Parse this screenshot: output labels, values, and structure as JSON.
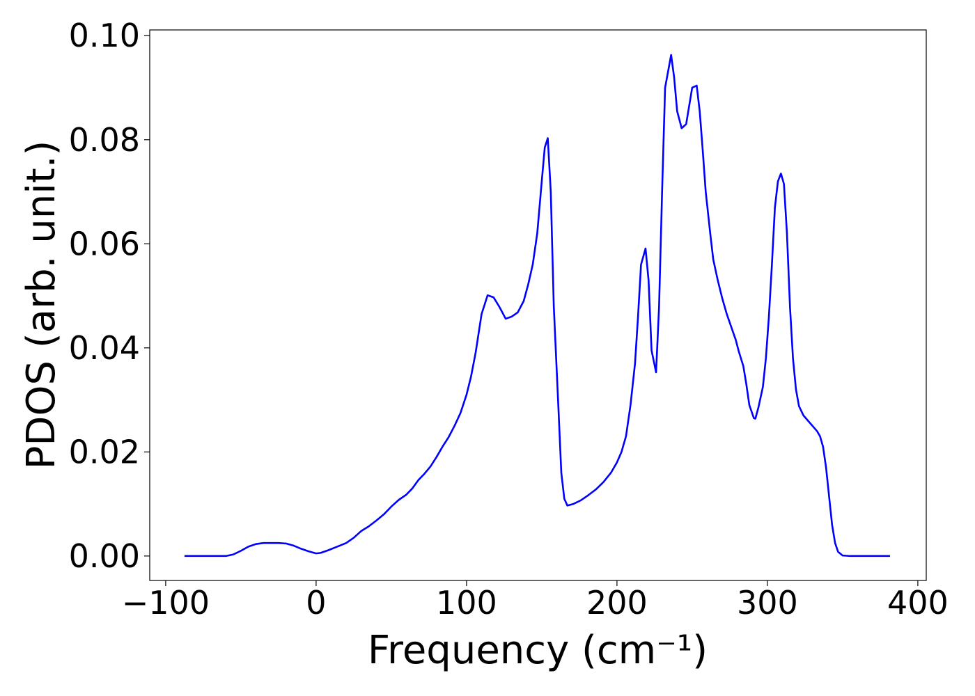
{
  "chart_data": {
    "type": "line",
    "x_label": "Frequency (cm⁻¹)",
    "y_label": "PDOS (arb. unit.)",
    "x": [
      -87.5,
      -60,
      -55,
      -50,
      -45,
      -40,
      -35,
      -25,
      -20,
      -15,
      -10,
      -5,
      0,
      3,
      8,
      14,
      20,
      25,
      30,
      35,
      40,
      45,
      50,
      55,
      60,
      64,
      68,
      72,
      76,
      80,
      84,
      88,
      92,
      96,
      100,
      103,
      106,
      110,
      114,
      118,
      122,
      126,
      130,
      134,
      138,
      141,
      144,
      147,
      150,
      152,
      154,
      156,
      158,
      161,
      163,
      165,
      167,
      171,
      176,
      181,
      186,
      191,
      196,
      200,
      203,
      206,
      209,
      212,
      214,
      216,
      219,
      221,
      223,
      226,
      228,
      230,
      232,
      236,
      238,
      240,
      243,
      246,
      250,
      253,
      255,
      257,
      259,
      262,
      264,
      267,
      270,
      273,
      276,
      279,
      281,
      284,
      286,
      288,
      291,
      292,
      294,
      297,
      299,
      301,
      303,
      305,
      307,
      309,
      311,
      313,
      315,
      317,
      319,
      321,
      324,
      327,
      330,
      333,
      335,
      337,
      339,
      341,
      343,
      345,
      347,
      350,
      355,
      381.5
    ],
    "series": [
      {
        "name": "PDOS",
        "color": "#0000ff",
        "values": [
          0,
          0,
          0.0003,
          0.001,
          0.0018,
          0.0023,
          0.0025,
          0.0025,
          0.0024,
          0.002,
          0.0014,
          0.0009,
          0.0005,
          0.0006,
          0.0011,
          0.0018,
          0.0025,
          0.0035,
          0.0048,
          0.0057,
          0.0068,
          0.008,
          0.0095,
          0.0108,
          0.0118,
          0.013,
          0.0146,
          0.0158,
          0.0172,
          0.019,
          0.021,
          0.0228,
          0.025,
          0.0275,
          0.031,
          0.0345,
          0.039,
          0.0465,
          0.0501,
          0.0497,
          0.0478,
          0.0456,
          0.046,
          0.0468,
          0.049,
          0.0522,
          0.056,
          0.062,
          0.072,
          0.0785,
          0.0803,
          0.07,
          0.048,
          0.029,
          0.016,
          0.011,
          0.0097,
          0.01,
          0.0107,
          0.0117,
          0.0128,
          0.0142,
          0.016,
          0.018,
          0.02,
          0.023,
          0.029,
          0.037,
          0.046,
          0.056,
          0.0591,
          0.053,
          0.0395,
          0.0353,
          0.048,
          0.07,
          0.09,
          0.0963,
          0.092,
          0.0855,
          0.0822,
          0.083,
          0.09,
          0.0904,
          0.0855,
          0.078,
          0.07,
          0.062,
          0.057,
          0.053,
          0.0495,
          0.0465,
          0.044,
          0.0415,
          0.0393,
          0.0365,
          0.033,
          0.029,
          0.0265,
          0.0264,
          0.0285,
          0.0325,
          0.038,
          0.046,
          0.056,
          0.067,
          0.072,
          0.0735,
          0.0715,
          0.062,
          0.048,
          0.038,
          0.032,
          0.0288,
          0.027,
          0.026,
          0.025,
          0.024,
          0.023,
          0.021,
          0.017,
          0.0115,
          0.006,
          0.0025,
          0.0008,
          0.0001,
          0,
          0
        ]
      }
    ],
    "xlim": [
      -110.6,
      405.6
    ],
    "ylim": [
      -0.0047,
      0.1011
    ],
    "xticks": [
      {
        "value": -100,
        "label": "−100"
      },
      0,
      100,
      200,
      300,
      400
    ],
    "yticks": [
      {
        "value": 0,
        "label": "0.00"
      },
      {
        "value": 0.02,
        "label": "0.02"
      },
      {
        "value": 0.04,
        "label": "0.04"
      },
      {
        "value": 0.06,
        "label": "0.06"
      },
      {
        "value": 0.08,
        "label": "0.08"
      },
      {
        "value": 0.1,
        "label": "0.10"
      }
    ]
  }
}
